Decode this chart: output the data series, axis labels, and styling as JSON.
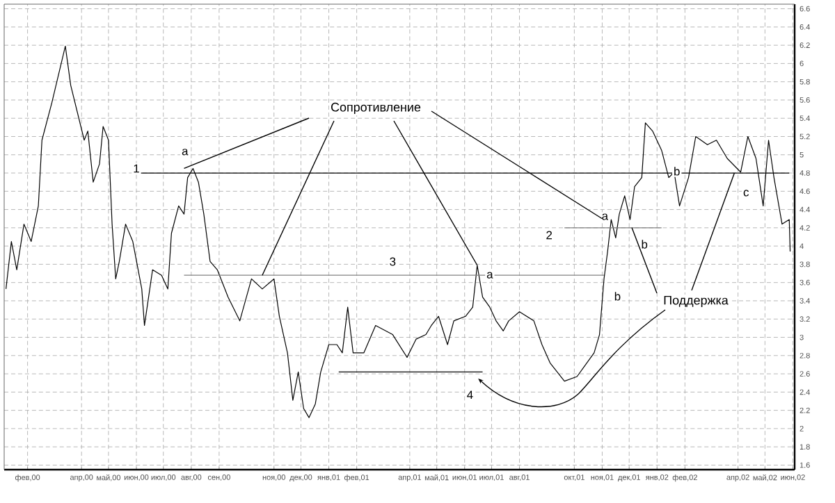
{
  "chart_data": {
    "type": "line",
    "xlim": [
      "2000-01-06",
      "2002-06-03"
    ],
    "ylim": [
      1.55,
      6.65
    ],
    "xticks": [
      {
        "value": "2000-02",
        "label": "фев,00"
      },
      {
        "value": "2000-04",
        "label": "апр,00"
      },
      {
        "value": "2000-05",
        "label": "май,00"
      },
      {
        "value": "2000-06",
        "label": "июн,00"
      },
      {
        "value": "2000-07",
        "label": "июл,00"
      },
      {
        "value": "2000-08",
        "label": "авг,00"
      },
      {
        "value": "2000-09",
        "label": "сен,00"
      },
      {
        "value": "2000-11",
        "label": "ноя,00"
      },
      {
        "value": "2000-12",
        "label": "дек,00"
      },
      {
        "value": "2001-01",
        "label": "янв,01"
      },
      {
        "value": "2001-02",
        "label": "фев,01"
      },
      {
        "value": "2001-04",
        "label": "апр,01"
      },
      {
        "value": "2001-05",
        "label": "май,01"
      },
      {
        "value": "2001-06",
        "label": "июн,01"
      },
      {
        "value": "2001-07",
        "label": "июл,01"
      },
      {
        "value": "2001-08",
        "label": "авг,01"
      },
      {
        "value": "2001-10",
        "label": "окт,01"
      },
      {
        "value": "2001-11",
        "label": "ноя,01"
      },
      {
        "value": "2001-12",
        "label": "дек,01"
      },
      {
        "value": "2002-01",
        "label": "янв,02"
      },
      {
        "value": "2002-02",
        "label": "фев,02"
      },
      {
        "value": "2002-04",
        "label": "апр,02"
      },
      {
        "value": "2002-05",
        "label": "май,02"
      },
      {
        "value": "2002-06",
        "label": "июн,02"
      }
    ],
    "yticks": [
      1.6,
      1.8,
      2,
      2.2,
      2.4,
      2.6,
      2.8,
      3,
      3.2,
      3.4,
      3.6,
      3.8,
      4,
      4.2,
      4.4,
      4.6,
      4.8,
      5,
      5.2,
      5.4,
      5.6,
      5.8,
      6,
      6.2,
      6.4,
      6.6
    ],
    "grid": true,
    "marker": "none",
    "line_style": "solid",
    "series": [
      {
        "color": "#000000",
        "x": [
          "2000-01-08",
          "2000-01-14",
          "2000-01-20",
          "2000-01-28",
          "2000-02-05",
          "2000-02-13",
          "2000-02-17",
          "2000-02-28",
          "2000-03-14",
          "2000-03-20",
          "2000-04-04",
          "2000-04-08",
          "2000-04-14",
          "2000-04-21",
          "2000-04-25",
          "2000-05-01",
          "2000-05-05",
          "2000-05-09",
          "2000-05-13",
          "2000-05-20",
          "2000-05-28",
          "2000-06-07",
          "2000-06-10",
          "2000-06-19",
          "2000-06-29",
          "2000-07-06",
          "2000-07-10",
          "2000-07-18",
          "2000-07-24",
          "2000-07-28",
          "2000-08-03",
          "2000-08-09",
          "2000-08-15",
          "2000-08-22",
          "2000-08-30",
          "2000-09-11",
          "2000-09-24",
          "2000-10-07",
          "2000-10-19",
          "2000-11-01",
          "2000-11-07",
          "2000-11-16",
          "2000-11-22",
          "2000-11-28",
          "2000-12-04",
          "2000-12-10",
          "2000-12-17",
          "2000-12-23",
          "2001-01-01",
          "2001-01-10",
          "2001-01-16",
          "2001-01-22",
          "2001-01-28",
          "2001-02-09",
          "2001-02-22",
          "2001-03-13",
          "2001-03-29",
          "2001-04-08",
          "2001-04-19",
          "2001-04-25",
          "2001-05-03",
          "2001-05-13",
          "2001-05-20",
          "2001-06-02",
          "2001-06-10",
          "2001-06-15",
          "2001-06-21",
          "2001-06-29",
          "2001-07-06",
          "2001-07-14",
          "2001-07-20",
          "2001-08-01",
          "2001-08-17",
          "2001-08-26",
          "2001-09-04",
          "2001-09-20",
          "2001-10-04",
          "2001-10-12",
          "2001-10-23",
          "2001-10-29",
          "2001-11-03",
          "2001-11-07",
          "2001-11-11",
          "2001-11-16",
          "2001-11-20",
          "2001-11-26",
          "2001-12-02",
          "2001-12-07",
          "2001-12-15",
          "2001-12-19",
          "2001-12-27",
          "2002-01-06",
          "2002-01-14",
          "2002-01-20",
          "2002-01-26",
          "2002-02-05",
          "2002-02-13",
          "2002-02-26",
          "2002-03-08",
          "2002-03-20",
          "2002-04-04",
          "2002-04-12",
          "2002-04-21",
          "2002-04-29",
          "2002-05-05",
          "2002-05-11",
          "2002-05-20",
          "2002-05-28",
          "2002-05-29"
        ],
        "values": [
          3.53,
          4.05,
          3.74,
          4.24,
          4.05,
          4.44,
          5.16,
          5.57,
          6.19,
          5.76,
          5.16,
          5.26,
          4.7,
          4.9,
          5.31,
          5.16,
          4.24,
          3.64,
          3.83,
          4.24,
          4.05,
          3.53,
          3.13,
          3.74,
          3.68,
          3.53,
          4.14,
          4.44,
          4.35,
          4.75,
          4.85,
          4.7,
          4.35,
          3.83,
          3.74,
          3.44,
          3.18,
          3.64,
          3.53,
          3.64,
          3.23,
          2.83,
          2.31,
          2.62,
          2.22,
          2.12,
          2.27,
          2.62,
          2.92,
          2.92,
          2.83,
          3.33,
          2.83,
          2.83,
          3.13,
          3.03,
          2.78,
          2.98,
          3.03,
          3.13,
          3.23,
          2.92,
          3.18,
          3.23,
          3.33,
          3.79,
          3.44,
          3.33,
          3.18,
          3.07,
          3.18,
          3.28,
          3.18,
          2.92,
          2.72,
          2.52,
          2.57,
          2.68,
          2.83,
          3.03,
          3.64,
          3.94,
          4.29,
          4.09,
          4.35,
          4.55,
          4.29,
          4.65,
          4.75,
          5.35,
          5.26,
          5.05,
          4.75,
          4.81,
          4.44,
          4.75,
          5.2,
          5.11,
          5.16,
          4.96,
          4.81,
          5.2,
          4.96,
          4.44,
          5.16,
          4.75,
          4.24,
          4.29,
          3.94
        ]
      },
      {
        "color": "#000000",
        "x": [
          "2000-05-28",
          "2002-05-28"
        ],
        "values": [
          4.8,
          4.8
        ]
      },
      {
        "color": "#808080",
        "x": [
          "2001-09-20",
          "2002-01-06"
        ],
        "values": [
          4.2,
          4.2
        ]
      },
      {
        "color": "#808080",
        "x": [
          "2000-07-24",
          "2001-11-03"
        ],
        "values": [
          3.68,
          3.68
        ]
      },
      {
        "color": "#000000",
        "x": [
          "2001-01-12",
          "2001-06-21"
        ],
        "values": [
          2.62,
          2.62
        ]
      }
    ],
    "annotations": [
      "Сопротивление",
      {
        "text": "Поддержка",
        "x": "2001-12-04",
        "y": 4.2
      },
      {
        "text": "1",
        "x": "2000-06-01",
        "y": 4.85
      },
      {
        "text": "2",
        "x": "2001-09-03",
        "y": 4.12
      },
      {
        "text": "3",
        "x": "2001-03-13",
        "y": 3.83
      },
      {
        "text": "4",
        "x": "2001-06-07",
        "y": 2.37
      },
      {
        "text": "a",
        "x": "2000-07-25",
        "y": 5.03
      },
      {
        "text": "a",
        "x": "2001-06-29",
        "y": 3.68
      },
      {
        "text": "a",
        "x": "2001-11-04",
        "y": 4.32
      },
      {
        "text": "b",
        "x": "2001-11-18",
        "y": 3.45
      },
      {
        "text": "b",
        "x": "2001-12-18",
        "y": 4.02
      },
      {
        "text": "b",
        "x": "2002-01-23",
        "y": 4.82
      },
      {
        "text": "c",
        "x": "2002-04-10",
        "y": 4.58
      }
    ]
  }
}
